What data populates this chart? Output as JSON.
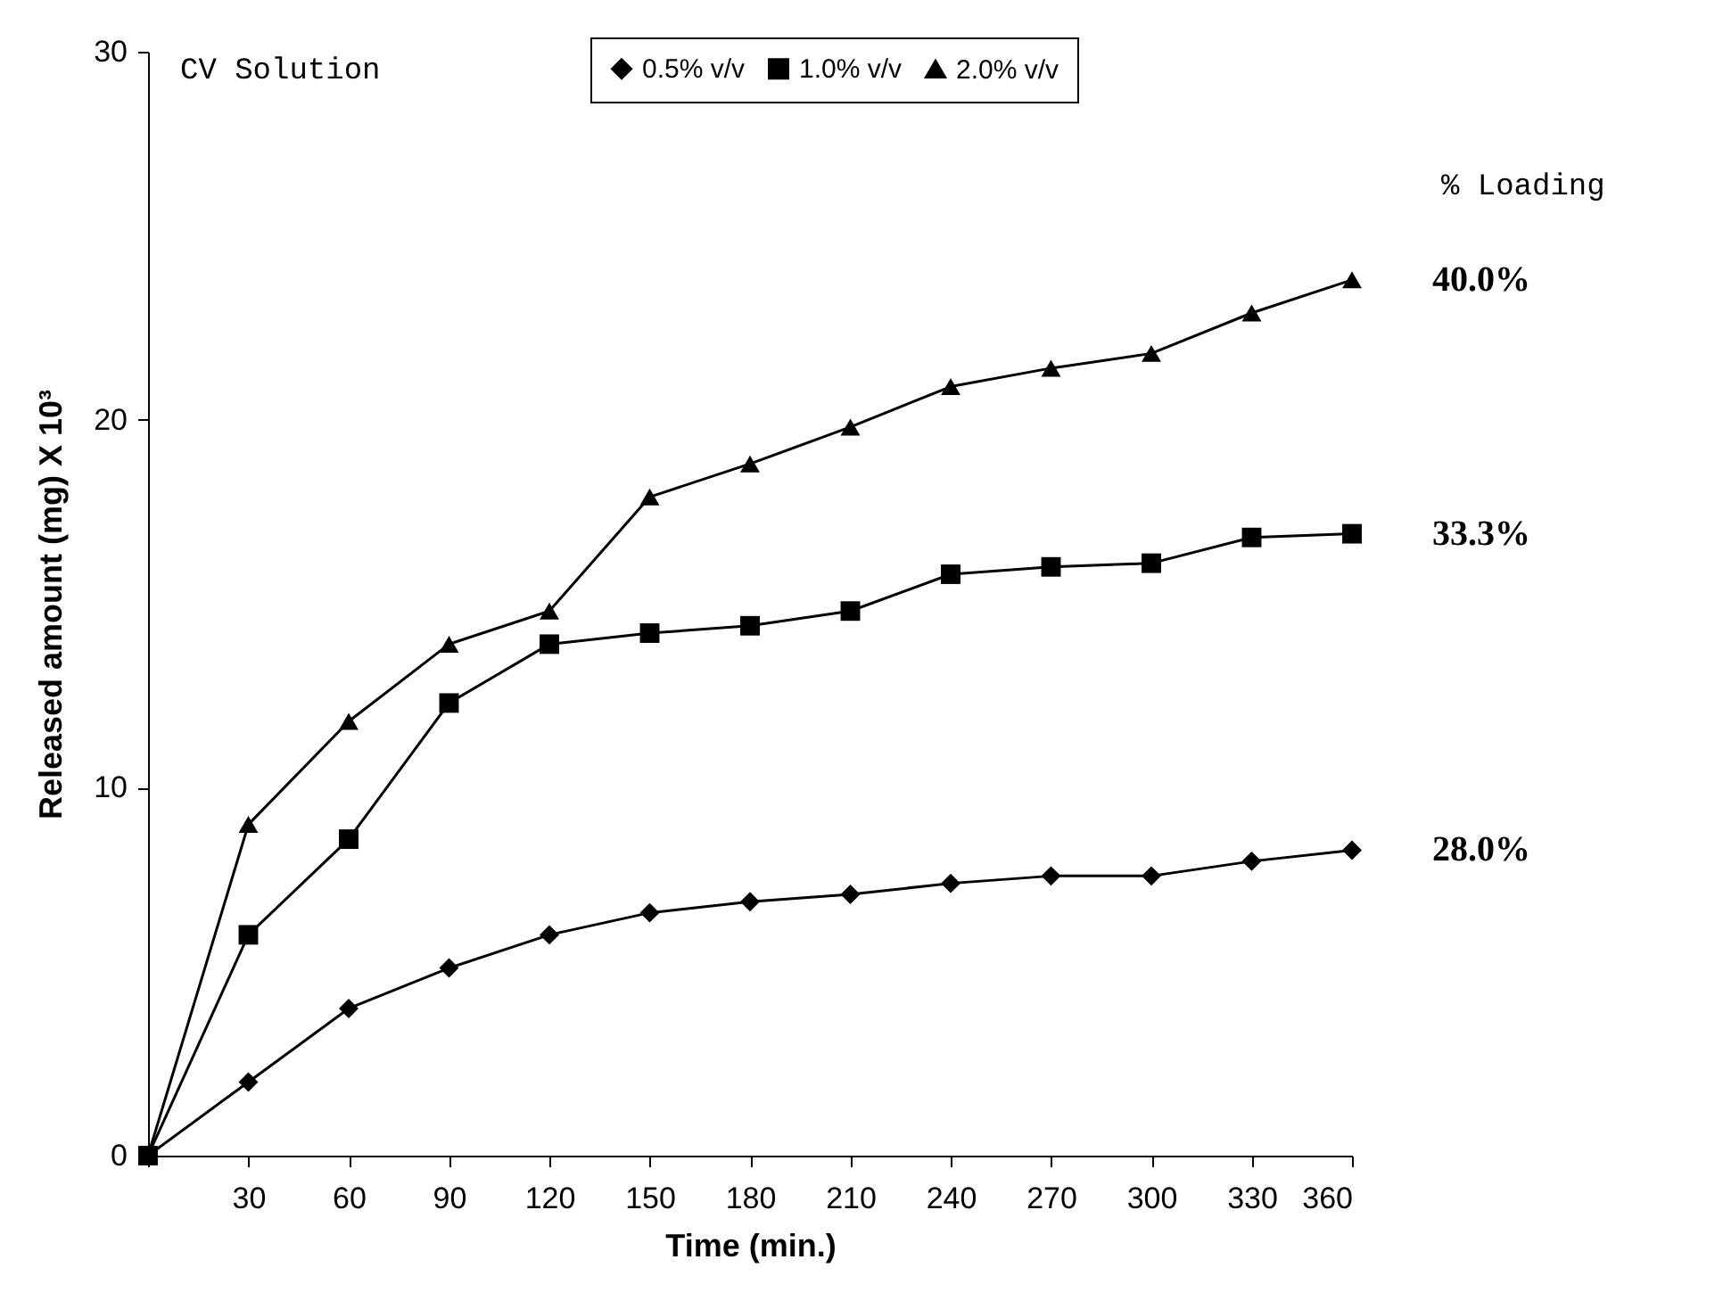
{
  "chart_data": {
    "type": "line",
    "xlabel": "Time (min.)",
    "ylabel": "Released amount (mg) X 10³",
    "x": [
      0,
      30,
      60,
      90,
      120,
      150,
      180,
      210,
      240,
      270,
      300,
      330,
      360
    ],
    "series": [
      {
        "name": "0.5% v/v",
        "color": "#000000",
        "marker": "diamond",
        "values": [
          0,
          2.0,
          4.0,
          5.1,
          6.0,
          6.6,
          6.9,
          7.1,
          7.4,
          7.6,
          7.6,
          8.0,
          8.3
        ]
      },
      {
        "name": "1.0% v/v",
        "color": "#000000",
        "marker": "square",
        "values": [
          0,
          6.0,
          8.6,
          12.3,
          13.9,
          14.2,
          14.4,
          14.8,
          15.8,
          16.0,
          16.1,
          16.8,
          16.9
        ]
      },
      {
        "name": "2.0% v/v",
        "color": "#000000",
        "marker": "triangle",
        "values": [
          0,
          9.0,
          11.8,
          13.9,
          14.8,
          17.9,
          18.8,
          19.8,
          20.9,
          21.4,
          21.8,
          22.9,
          23.8
        ]
      }
    ],
    "xlim": [
      0,
      360
    ],
    "xticks": [
      {
        "value": 0,
        "label": null
      },
      30,
      60,
      90,
      120,
      150,
      180,
      210,
      240,
      270,
      300,
      330,
      360
    ],
    "ylim": [
      0,
      30
    ],
    "yticks": [
      0,
      10,
      20,
      30
    ],
    "grid": false,
    "legend": "top right",
    "line_style": "solid",
    "annotations": [
      "CV Solution",
      "% Loading",
      "40.0%",
      "33.3%",
      "28.0%"
    ]
  }
}
